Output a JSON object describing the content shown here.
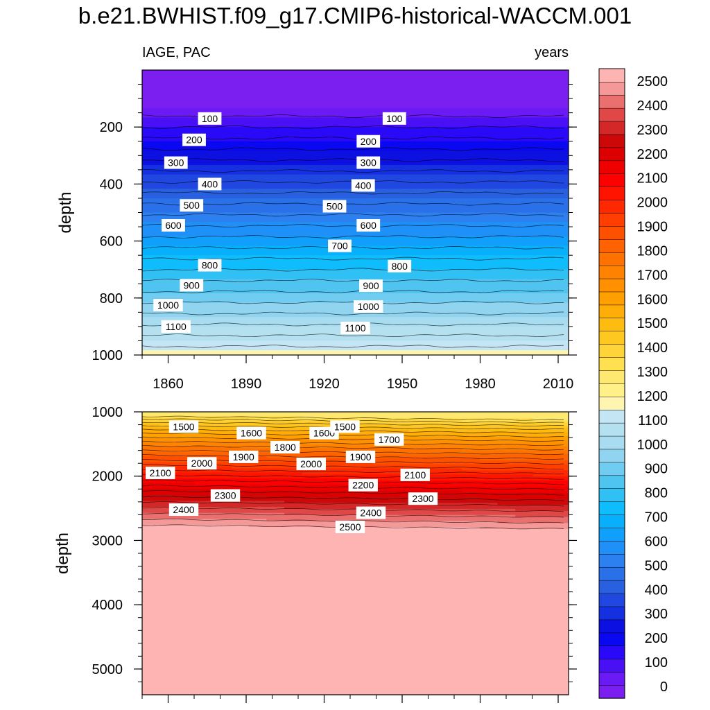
{
  "title": "b.e21.BWHIST.f09_g17.CMIP6-historical-WACCM.001",
  "chart_data": {
    "type": "contour",
    "left_label": "IAGE, PAC",
    "right_label": "years",
    "ylabel": "depth",
    "x_ticks": [
      "1860",
      "1890",
      "1920",
      "1950",
      "1980",
      "2010"
    ],
    "x_tick_values": [
      1860,
      1890,
      1920,
      1950,
      1980,
      2010
    ],
    "x_range": [
      1850,
      2014
    ],
    "upper_panel": {
      "depth_range": [
        0,
        1000
      ],
      "y_ticks": [
        "200",
        "400",
        "600",
        "800",
        "1000"
      ],
      "y_tick_values": [
        200,
        400,
        600,
        800,
        1000
      ],
      "contour_labels": [
        {
          "value": "100",
          "year": 1876,
          "depth": 170
        },
        {
          "value": "100",
          "year": 1947,
          "depth": 170
        },
        {
          "value": "200",
          "year": 1870,
          "depth": 245
        },
        {
          "value": "200",
          "year": 1937,
          "depth": 250
        },
        {
          "value": "300",
          "year": 1863,
          "depth": 325
        },
        {
          "value": "300",
          "year": 1937,
          "depth": 325
        },
        {
          "value": "400",
          "year": 1876,
          "depth": 400
        },
        {
          "value": "400",
          "year": 1935,
          "depth": 405
        },
        {
          "value": "500",
          "year": 1869,
          "depth": 475
        },
        {
          "value": "500",
          "year": 1924,
          "depth": 478
        },
        {
          "value": "600",
          "year": 1862,
          "depth": 545
        },
        {
          "value": "600",
          "year": 1937,
          "depth": 545
        },
        {
          "value": "700",
          "year": 1926,
          "depth": 617
        },
        {
          "value": "800",
          "year": 1876,
          "depth": 685
        },
        {
          "value": "800",
          "year": 1949,
          "depth": 688
        },
        {
          "value": "900",
          "year": 1869,
          "depth": 755
        },
        {
          "value": "900",
          "year": 1938,
          "depth": 757
        },
        {
          "value": "1000",
          "year": 1860,
          "depth": 825
        },
        {
          "value": "1000",
          "year": 1937,
          "depth": 830
        },
        {
          "value": "1100",
          "year": 1863,
          "depth": 900
        },
        {
          "value": "1100",
          "year": 1932,
          "depth": 905
        }
      ]
    },
    "lower_panel": {
      "depth_range": [
        1000,
        5400
      ],
      "y_ticks": [
        "1000",
        "2000",
        "3000",
        "4000",
        "5000"
      ],
      "y_tick_values": [
        1000,
        2000,
        3000,
        4000,
        5000
      ],
      "contour_labels": [
        {
          "value": "1500",
          "year": 1866,
          "depth": 1230
        },
        {
          "value": "1600",
          "year": 1892,
          "depth": 1330
        },
        {
          "value": "1800",
          "year": 1905,
          "depth": 1550
        },
        {
          "value": "1900",
          "year": 1889,
          "depth": 1700
        },
        {
          "value": "2000",
          "year": 1873,
          "depth": 1800
        },
        {
          "value": "2100",
          "year": 1857,
          "depth": 1950
        },
        {
          "value": "1600",
          "year": 1920,
          "depth": 1330
        },
        {
          "value": "1500",
          "year": 1928,
          "depth": 1230
        },
        {
          "value": "1700",
          "year": 1945,
          "depth": 1430
        },
        {
          "value": "1900",
          "year": 1934,
          "depth": 1700
        },
        {
          "value": "2000",
          "year": 1915,
          "depth": 1810
        },
        {
          "value": "2100",
          "year": 1955,
          "depth": 1980
        },
        {
          "value": "2200",
          "year": 1935,
          "depth": 2140
        },
        {
          "value": "2300",
          "year": 1882,
          "depth": 2300
        },
        {
          "value": "2300",
          "year": 1958,
          "depth": 2350
        },
        {
          "value": "2400",
          "year": 1866,
          "depth": 2520
        },
        {
          "value": "2400",
          "year": 1938,
          "depth": 2570
        },
        {
          "value": "2500",
          "year": 1930,
          "depth": 2790
        }
      ]
    },
    "colorbar": {
      "levels": [
        0,
        100,
        200,
        300,
        400,
        500,
        600,
        700,
        800,
        900,
        1000,
        1100,
        1200,
        1300,
        1400,
        1500,
        1600,
        1700,
        1800,
        1900,
        2000,
        2100,
        2200,
        2300,
        2400,
        2500
      ],
      "labels": [
        "0",
        "100",
        "200",
        "300",
        "400",
        "500",
        "600",
        "700",
        "800",
        "900",
        "1000",
        "1100",
        "1200",
        "1300",
        "1400",
        "1500",
        "1600",
        "1700",
        "1800",
        "1900",
        "2000",
        "2100",
        "2200",
        "2300",
        "2400",
        "2500"
      ],
      "colors": [
        "#7a1ff0",
        "#6a1af5",
        "#4a10f5",
        "#2a08f8",
        "#0a08f0",
        "#0c10e0",
        "#1530e0",
        "#2048e0",
        "#2860e0",
        "#2a70e8",
        "#2c80f0",
        "#1e90f8",
        "#10a0fc",
        "#08b0fc",
        "#10bdfc",
        "#30c0f4",
        "#50c4f0",
        "#70ccf0",
        "#90d4f0",
        "#a8dcf0",
        "#b4e0f0",
        "#c4e6f4",
        "#fff5b0",
        "#fff088",
        "#ffe870",
        "#ffe050",
        "#ffd438",
        "#ffc820",
        "#ffbc10",
        "#ffae08",
        "#ffa000",
        "#ff9000",
        "#ff8200",
        "#ff7200",
        "#ff6200",
        "#ff5000",
        "#ff3e00",
        "#ff2800",
        "#ff1400",
        "#ff0000",
        "#ee0000",
        "#dd0000",
        "#cc0808",
        "#d42828",
        "#e04848",
        "#ea7070",
        "#f49898",
        "#ffb4b4"
      ]
    }
  }
}
